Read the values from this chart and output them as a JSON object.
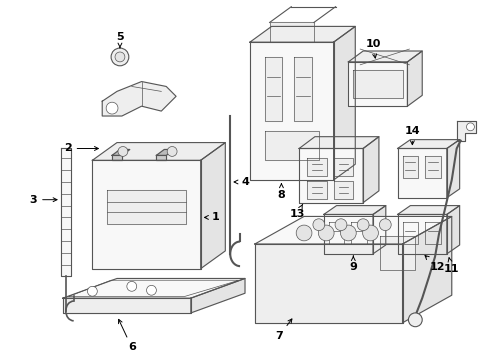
{
  "background_color": "#ffffff",
  "line_color": "#555555",
  "text_color": "#000000",
  "figsize": [
    4.89,
    3.6
  ],
  "dpi": 100,
  "lw_main": 0.8,
  "lw_thin": 0.5,
  "face_color": "#f8f8f8",
  "face_color2": "#eeeeee",
  "face_color3": "#e4e4e4"
}
